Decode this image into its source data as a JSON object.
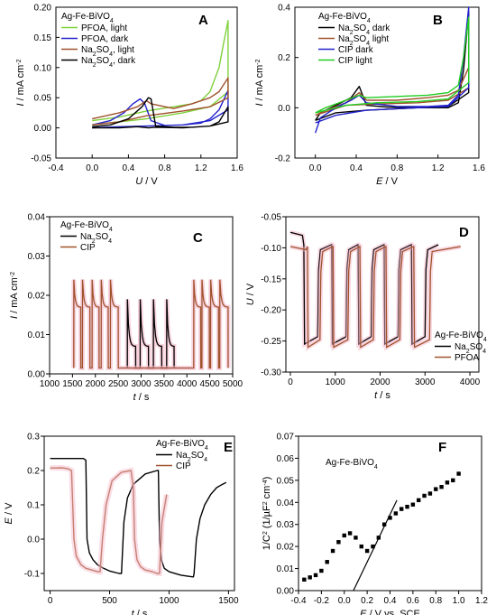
{
  "chart_data": [
    {
      "type": "line",
      "panel": "A",
      "title": "Ag-Fe-BiVO4",
      "xlabel": "U / V",
      "ylabel": "I / mA cm-2",
      "xlim": [
        -0.4,
        1.6
      ],
      "ylim": [
        -0.05,
        0.2
      ],
      "xticks": [
        -0.4,
        0.0,
        0.4,
        0.8,
        1.2,
        1.6
      ],
      "yticks": [
        -0.05,
        0.0,
        0.05,
        0.1,
        0.15,
        0.2
      ],
      "xtick_labels": [
        "-0.4",
        "0.0",
        "0.4",
        "0.8",
        "1.2",
        "1.6"
      ],
      "ytick_labels": [
        "-0.05",
        "0.00",
        "0.05",
        "0.10",
        "0.15",
        "0.20"
      ],
      "legend_position": "top-left",
      "series": [
        {
          "name": "PFOA, light",
          "color": "#7fd13b",
          "x": [
            0.0,
            0.3,
            0.6,
            0.9,
            1.1,
            1.2,
            1.3,
            1.4,
            1.45,
            1.5,
            1.5,
            1.3,
            1.0,
            0.6,
            0.3,
            0.0
          ],
          "y": [
            0.012,
            0.018,
            0.028,
            0.035,
            0.04,
            0.045,
            0.06,
            0.1,
            0.14,
            0.178,
            0.06,
            0.035,
            0.025,
            0.015,
            0.01,
            0.005
          ]
        },
        {
          "name": "PFOA, dark",
          "color": "#2222cc",
          "x": [
            0.0,
            0.2,
            0.35,
            0.45,
            0.53,
            0.58,
            0.65,
            0.8,
            1.0,
            1.2,
            1.3,
            1.4,
            1.5,
            1.5,
            1.3,
            1.0,
            0.6,
            0.3,
            0.0
          ],
          "y": [
            0.005,
            0.012,
            0.025,
            0.04,
            0.048,
            0.04,
            0.012,
            0.004,
            0.005,
            0.008,
            0.015,
            0.03,
            0.062,
            0.03,
            0.012,
            0.005,
            0.003,
            0.002,
            0.0
          ]
        },
        {
          "name": "Na2SO4, light",
          "color": "#a0522d",
          "x": [
            0.0,
            0.3,
            0.5,
            0.6,
            0.65,
            0.9,
            1.1,
            1.3,
            1.4,
            1.5,
            1.5,
            1.3,
            1.0,
            0.6,
            0.3,
            0.0
          ],
          "y": [
            0.015,
            0.025,
            0.035,
            0.045,
            0.04,
            0.032,
            0.04,
            0.05,
            0.06,
            0.083,
            0.05,
            0.035,
            0.028,
            0.02,
            0.01,
            0.005
          ]
        },
        {
          "name": "Na2SO4, dark",
          "color": "#000000",
          "x": [
            0.0,
            0.2,
            0.4,
            0.55,
            0.62,
            0.65,
            0.7,
            0.9,
            1.1,
            1.3,
            1.4,
            1.5,
            1.5,
            1.3,
            1.0,
            0.7,
            0.62,
            0.5,
            0.3,
            0.0
          ],
          "y": [
            0.002,
            0.005,
            0.015,
            0.035,
            0.05,
            0.048,
            0.003,
            0.001,
            0.001,
            0.003,
            0.01,
            0.035,
            0.01,
            0.003,
            0.0,
            0.001,
            0.0,
            0.002,
            0.0,
            0.0
          ]
        }
      ]
    },
    {
      "type": "line",
      "panel": "B",
      "title": "Ag-Fe-BiVO4",
      "xlabel": "E / V",
      "ylabel": "I / mA cm-2",
      "xlim": [
        -0.2,
        1.6
      ],
      "ylim": [
        -0.2,
        0.4
      ],
      "xticks": [
        0.0,
        0.4,
        0.8,
        1.2,
        1.6
      ],
      "yticks": [
        -0.2,
        0.0,
        0.2,
        0.4
      ],
      "xtick_labels": [
        "0.0",
        "0.4",
        "0.8",
        "1.2",
        "1.6"
      ],
      "ytick_labels": [
        "-0.2",
        "0.0",
        "0.2",
        "0.4"
      ],
      "legend_position": "top-left",
      "series": [
        {
          "name": "Na2SO4 dark",
          "color": "#000000",
          "x": [
            0.0,
            0.05,
            0.2,
            0.35,
            0.43,
            0.5,
            0.7,
            1.0,
            1.3,
            1.4,
            1.45,
            1.5,
            1.5,
            1.3,
            1.0,
            0.5,
            0.2,
            0.0
          ],
          "y": [
            -0.05,
            -0.02,
            0.01,
            0.04,
            0.085,
            0.01,
            0.003,
            0.0,
            0.0,
            0.02,
            0.15,
            0.38,
            0.06,
            0.005,
            0.0,
            -0.01,
            -0.02,
            -0.05
          ]
        },
        {
          "name": "Na2SO4 light",
          "color": "#a0522d",
          "x": [
            0.0,
            0.1,
            0.3,
            0.43,
            0.5,
            0.8,
            1.1,
            1.3,
            1.4,
            1.5,
            1.5,
            1.3,
            1.0,
            0.6,
            0.3,
            0.0
          ],
          "y": [
            -0.03,
            -0.01,
            0.02,
            0.06,
            0.03,
            0.03,
            0.04,
            0.05,
            0.07,
            0.16,
            0.08,
            0.03,
            0.02,
            0.015,
            0.01,
            -0.03
          ]
        },
        {
          "name": "CIP dark",
          "color": "#2222cc",
          "x": [
            0.0,
            0.05,
            0.2,
            0.35,
            0.43,
            0.5,
            0.8,
            1.1,
            1.3,
            1.4,
            1.45,
            1.5,
            1.5,
            1.3,
            1.0,
            0.5,
            0.2,
            0.0
          ],
          "y": [
            -0.1,
            -0.04,
            0.0,
            0.03,
            0.05,
            0.02,
            0.005,
            0.005,
            0.01,
            0.05,
            0.2,
            0.4,
            0.08,
            0.005,
            0.0,
            -0.01,
            -0.03,
            -0.06
          ]
        },
        {
          "name": "CIP light",
          "color": "#22cc22",
          "x": [
            0.0,
            0.1,
            0.3,
            0.43,
            0.5,
            0.8,
            1.1,
            1.3,
            1.4,
            1.45,
            1.5,
            1.5,
            1.3,
            1.0,
            0.6,
            0.3,
            0.0
          ],
          "y": [
            -0.02,
            0.0,
            0.03,
            0.05,
            0.04,
            0.045,
            0.05,
            0.06,
            0.09,
            0.2,
            0.36,
            0.1,
            0.035,
            0.025,
            0.02,
            0.01,
            -0.02
          ]
        }
      ]
    },
    {
      "type": "line",
      "panel": "C",
      "title": "Ag-Fe-BiVO4",
      "xlabel": "t / s",
      "ylabel": "I / mA cm-2",
      "xlim": [
        1000,
        5000
      ],
      "ylim": [
        0,
        0.04
      ],
      "xticks": [
        1000,
        1500,
        2000,
        2500,
        3000,
        3500,
        4000,
        4500,
        5000
      ],
      "yticks": [
        0.0,
        0.01,
        0.02,
        0.03,
        0.04
      ],
      "xtick_labels": [
        "1000",
        "1500",
        "2000",
        "2500",
        "3000",
        "3500",
        "4000",
        "4500",
        "5000"
      ],
      "ytick_labels": [
        "0.00",
        "0.01",
        "0.02",
        "0.03",
        "0.04"
      ],
      "legend_position": "top-left",
      "series": [
        {
          "name": "Na2SO4",
          "color": "#000000",
          "light_on": [
            2700,
            2980,
            3270,
            3560
          ],
          "light_off": [
            2880,
            3160,
            3450,
            3720
          ],
          "peak": 0.019,
          "plateau": 0.007,
          "dark": 0.0015
        },
        {
          "name": "CIP",
          "color": "#a0522d",
          "light_on": [
            1530,
            1720,
            1930,
            2130,
            2330,
            4150,
            4330,
            4520,
            4720
          ],
          "light_off": [
            1680,
            1880,
            2080,
            2280,
            2500,
            4300,
            4490,
            4690,
            4900
          ],
          "peak": 0.024,
          "plateau": 0.017,
          "dark": 0.0015
        }
      ]
    },
    {
      "type": "line",
      "panel": "D",
      "title": "Ag-Fe-BiVO4",
      "xlabel": "t / s",
      "ylabel": "U / V",
      "xlim": [
        -100,
        4200
      ],
      "ylim": [
        -0.3,
        -0.05
      ],
      "xticks": [
        0,
        1000,
        2000,
        3000,
        4000
      ],
      "yticks": [
        -0.3,
        -0.25,
        -0.2,
        -0.15,
        -0.1,
        -0.05
      ],
      "xtick_labels": [
        "0",
        "1000",
        "2000",
        "3000",
        "4000"
      ],
      "ytick_labels": [
        "-0.30",
        "-0.25",
        "-0.20",
        "-0.15",
        "-0.10",
        "-0.05"
      ],
      "legend_position": "bottom-right",
      "series": [
        {
          "name": "Na2SO4",
          "color": "#000000",
          "light_on": [
            300,
            920,
            1510,
            2090,
            2700
          ],
          "light_off": [
            610,
            1240,
            1800,
            2400,
            3000
          ],
          "start": -0.075,
          "dark": -0.095,
          "light": -0.255,
          "end": 3300
        },
        {
          "name": "PFOA",
          "color": "#a0522d",
          "light_on": [
            380,
            950,
            1550,
            2130,
            2750
          ],
          "light_off": [
            660,
            1280,
            1850,
            2440,
            3100
          ],
          "start": -0.098,
          "dark": -0.098,
          "light": -0.26,
          "end": 3800
        }
      ]
    },
    {
      "type": "line",
      "panel": "E",
      "title": "Ag-Fe-BiVO4",
      "xlabel": "t / s",
      "ylabel": "E / V",
      "xlim": [
        -50,
        1550
      ],
      "ylim": [
        -0.15,
        0.3
      ],
      "xticks": [
        0,
        500,
        1000,
        1500
      ],
      "yticks": [
        -0.1,
        0.0,
        0.1,
        0.2,
        0.3
      ],
      "xtick_labels": [
        "0",
        "500",
        "1000",
        "1500"
      ],
      "ytick_labels": [
        "-0.1",
        "0.0",
        "0.1",
        "0.2",
        "0.3"
      ],
      "legend_position": "top-right",
      "series": [
        {
          "name": "Na2SO4",
          "color": "#000000",
          "x": [
            0,
            100,
            280,
            300,
            310,
            330,
            360,
            400,
            450,
            500,
            580,
            600,
            620,
            650,
            700,
            800,
            900,
            910,
            920,
            935,
            960,
            1000,
            1100,
            1200,
            1205,
            1210,
            1230,
            1260,
            1300,
            1350,
            1400,
            1450,
            1480
          ],
          "y": [
            0.235,
            0.235,
            0.235,
            0.23,
            0.0,
            -0.04,
            -0.06,
            -0.075,
            -0.085,
            -0.093,
            -0.1,
            -0.1,
            0.05,
            0.12,
            0.16,
            0.19,
            0.2,
            0.2,
            0.0,
            -0.06,
            -0.085,
            -0.095,
            -0.105,
            -0.11,
            -0.11,
            -0.1,
            0.0,
            0.06,
            0.1,
            0.13,
            0.15,
            0.16,
            0.165
          ]
        },
        {
          "name": "CIP",
          "color": "#a0522d",
          "x": [
            0,
            100,
            150,
            180,
            200,
            220,
            260,
            300,
            350,
            400,
            420,
            440,
            470,
            520,
            600,
            680,
            700,
            710,
            730,
            760,
            800,
            860,
            900,
            920,
            940,
            980
          ],
          "y": [
            0.207,
            0.208,
            0.205,
            0.2,
            0.0,
            -0.05,
            -0.075,
            -0.085,
            -0.09,
            -0.095,
            -0.095,
            0.0,
            0.1,
            0.17,
            0.195,
            0.2,
            0.15,
            0.0,
            -0.06,
            -0.08,
            -0.09,
            -0.095,
            -0.1,
            -0.1,
            0.05,
            0.13
          ]
        }
      ]
    },
    {
      "type": "scatter",
      "panel": "F",
      "title": "Ag-Fe-BiVO4",
      "xlabel": "E / V vs. SCE",
      "ylabel": "1/C2 (1/µF2 cm-4)",
      "xlim": [
        -0.4,
        1.2
      ],
      "ylim": [
        0.0,
        0.07
      ],
      "xticks": [
        -0.4,
        -0.2,
        0.0,
        0.2,
        0.4,
        0.6,
        0.8,
        1.0,
        1.2
      ],
      "yticks": [
        0.0,
        0.01,
        0.02,
        0.03,
        0.04,
        0.05,
        0.06,
        0.07
      ],
      "xtick_labels": [
        "-0.4",
        "-0.2",
        "0.0",
        "0.2",
        "0.4",
        "0.6",
        "0.8",
        "1.0",
        "1.2"
      ],
      "ytick_labels": [
        "0.00",
        "0.01",
        "0.02",
        "0.03",
        "0.04",
        "0.05",
        "0.06",
        "0.07"
      ],
      "x": [
        -0.35,
        -0.3,
        -0.25,
        -0.2,
        -0.15,
        -0.1,
        -0.05,
        0.0,
        0.05,
        0.1,
        0.15,
        0.2,
        0.25,
        0.3,
        0.35,
        0.4,
        0.45,
        0.5,
        0.55,
        0.6,
        0.65,
        0.7,
        0.75,
        0.8,
        0.85,
        0.9,
        0.95,
        1.0
      ],
      "y": [
        0.005,
        0.006,
        0.007,
        0.009,
        0.013,
        0.018,
        0.022,
        0.025,
        0.026,
        0.024,
        0.02,
        0.018,
        0.02,
        0.024,
        0.03,
        0.033,
        0.035,
        0.037,
        0.038,
        0.039,
        0.041,
        0.043,
        0.044,
        0.046,
        0.047,
        0.049,
        0.05,
        0.053
      ],
      "fit_line": {
        "x": [
          0.08,
          0.46
        ],
        "y": [
          0.0,
          0.041
        ]
      }
    }
  ]
}
